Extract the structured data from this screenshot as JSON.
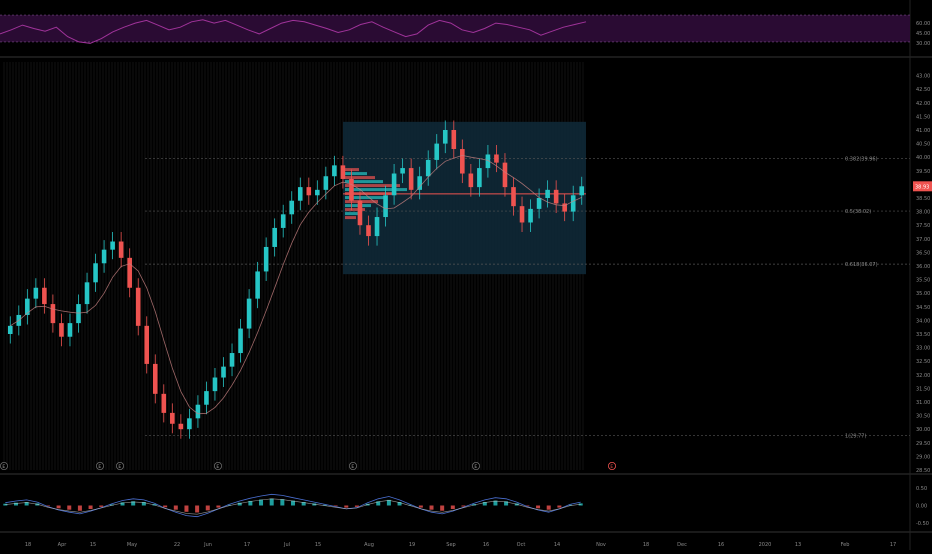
{
  "colors": {
    "background": "#000000",
    "grid": "#1a1a1a",
    "volume_bar_grid": "#3a3a3a",
    "up_candle": "#26c6c6",
    "down_candle": "#ef5350",
    "rsi_line": "#a0339a",
    "rsi_band": "#2a0b33",
    "fib_line": "#555555",
    "vp_box": "#0f2a3a",
    "price_badge": "#ef5350",
    "axis_text": "#8a8a8a",
    "macd_line": "#4a6fd1",
    "signal_line": "#d1d1d1"
  },
  "chart_data": [
    {
      "type": "line",
      "panel": "rsi",
      "title": "",
      "ylim": [
        15,
        85
      ],
      "y_ticks": [
        "60.00",
        "45.00",
        "30.00"
      ],
      "band": [
        30,
        70
      ],
      "grid": true,
      "x": [
        0,
        4,
        8,
        12,
        16,
        20,
        24,
        28,
        32,
        36,
        40,
        44,
        48,
        52,
        56,
        60,
        64,
        68,
        72,
        76,
        80,
        84,
        88,
        92,
        96,
        100,
        104,
        108,
        112,
        116,
        120,
        124,
        128,
        132,
        136,
        140,
        144,
        148,
        152,
        156,
        160,
        164,
        168,
        172,
        176,
        180,
        184,
        188,
        192,
        196,
        200,
        204,
        208
      ],
      "values": [
        42,
        48,
        55,
        50,
        46,
        52,
        38,
        30,
        28,
        35,
        45,
        52,
        58,
        62,
        55,
        48,
        52,
        60,
        63,
        58,
        62,
        55,
        48,
        42,
        50,
        58,
        62,
        60,
        55,
        50,
        44,
        48,
        56,
        60,
        52,
        45,
        38,
        42,
        55,
        62,
        58,
        48,
        44,
        50,
        58,
        56,
        52,
        48,
        40,
        46,
        52,
        56,
        60
      ]
    },
    {
      "type": "candlestick",
      "panel": "price",
      "ylim": [
        28.5,
        43.5
      ],
      "y_ticks": [
        "43.00",
        "42.50",
        "42.00",
        "41.50",
        "41.00",
        "40.50",
        "40.00",
        "39.50",
        "39.00",
        "38.50",
        "38.00",
        "37.50",
        "37.00",
        "36.50",
        "36.00",
        "35.50",
        "35.00",
        "34.50",
        "34.00",
        "33.50",
        "33.00",
        "32.50",
        "32.00",
        "31.50",
        "31.00",
        "30.50",
        "30.00",
        "29.50",
        "29.00",
        "28.50"
      ],
      "last_price": "38.93",
      "close": [
        33.8,
        34.2,
        34.8,
        35.2,
        34.6,
        33.9,
        33.4,
        33.9,
        34.6,
        35.4,
        36.1,
        36.6,
        36.9,
        36.3,
        35.2,
        33.8,
        32.4,
        31.3,
        30.6,
        30.2,
        30.0,
        30.4,
        30.9,
        31.4,
        31.9,
        32.3,
        32.8,
        33.7,
        34.8,
        35.8,
        36.7,
        37.4,
        37.9,
        38.4,
        38.9,
        38.6,
        38.8,
        39.3,
        39.7,
        39.2,
        38.4,
        37.5,
        37.1,
        37.8,
        38.6,
        39.4,
        39.6,
        38.8,
        39.3,
        39.9,
        40.5,
        41.0,
        40.3,
        39.4,
        38.9,
        39.6,
        40.1,
        39.8,
        38.9,
        38.2,
        37.6,
        38.1,
        38.5,
        38.8,
        38.3,
        38.0,
        38.6,
        38.93
      ],
      "fib_levels": [
        {
          "label": "0.382(39.96)",
          "value": 39.96
        },
        {
          "label": "0.5(38.02)",
          "value": 38.02
        },
        {
          "label": "0.618(36.07)",
          "value": 36.07
        },
        {
          "label": "1(29.77)",
          "value": 29.77
        }
      ],
      "event_markers": [
        "E",
        "E",
        "E",
        "E",
        "E",
        "E",
        "E"
      ],
      "x_ticks": [
        "18",
        "Apr",
        "15",
        "May",
        "22",
        "Jun",
        "17",
        "Jul",
        "15",
        "Aug",
        "19",
        "Sep",
        "16",
        "Oct",
        "14",
        "Nov",
        "18",
        "Dec",
        "16",
        "2020",
        "13",
        "Feb",
        "17"
      ]
    },
    {
      "type": "bar",
      "panel": "macd",
      "ylim": [
        -0.7,
        0.7
      ],
      "y_ticks": [
        "0.50",
        "0.00",
        "-0.50"
      ],
      "histogram": [
        0.05,
        0.08,
        0.1,
        0.06,
        -0.02,
        -0.08,
        -0.12,
        -0.15,
        -0.1,
        -0.04,
        0.03,
        0.09,
        0.12,
        0.1,
        0.04,
        -0.05,
        -0.12,
        -0.18,
        -0.2,
        -0.14,
        -0.06,
        0.02,
        0.08,
        0.13,
        0.17,
        0.2,
        0.18,
        0.14,
        0.1,
        0.06,
        0.02,
        -0.02,
        -0.06,
        -0.04,
        0.05,
        0.12,
        0.16,
        0.1,
        0.02,
        -0.06,
        -0.12,
        -0.15,
        -0.1,
        -0.03,
        0.04,
        0.1,
        0.14,
        0.12,
        0.06,
        -0.02,
        -0.08,
        -0.12,
        -0.06,
        0.02,
        0.06
      ]
    }
  ]
}
